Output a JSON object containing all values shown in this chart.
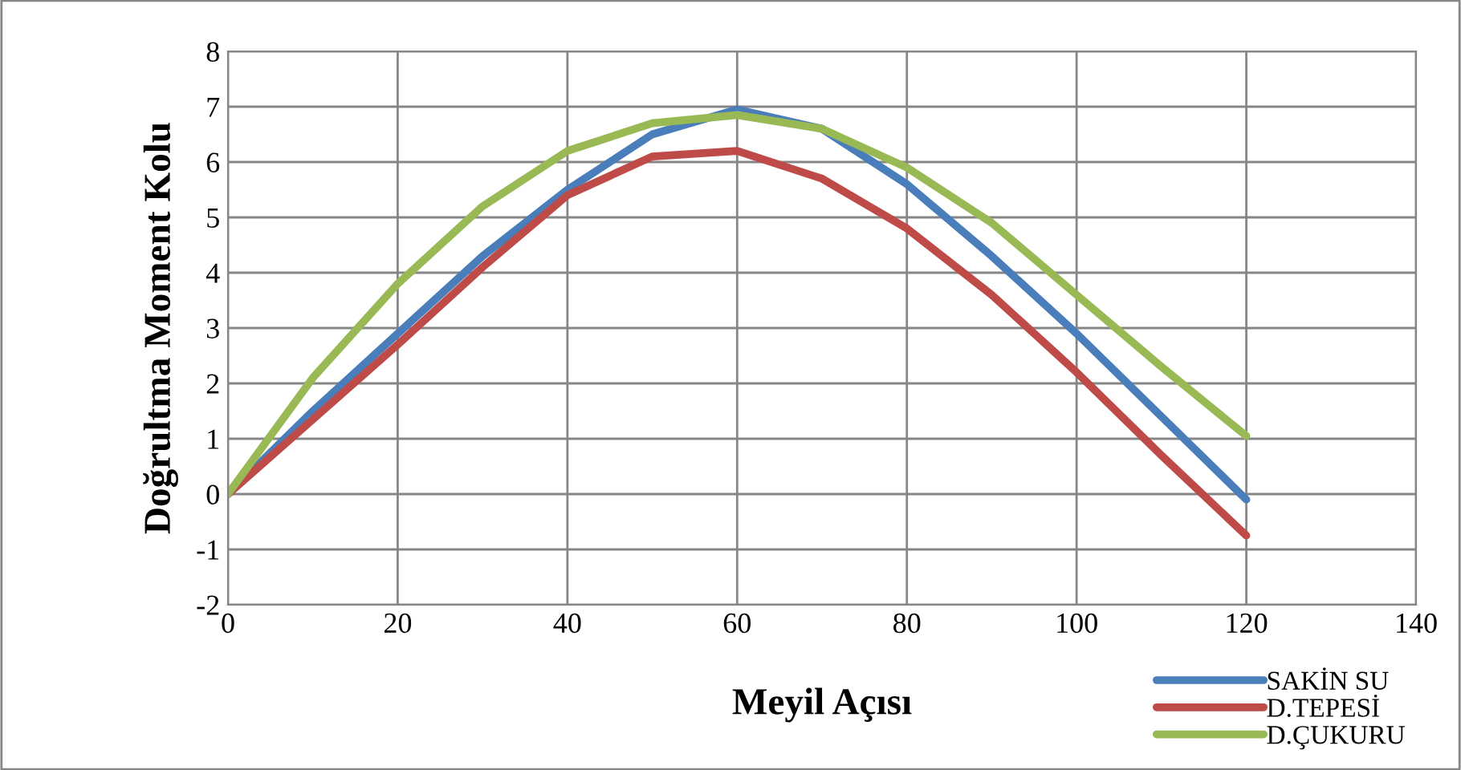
{
  "chart_data": {
    "type": "line",
    "xlabel": "Meyil Açısı",
    "ylabel": "Doğrultma Moment Kolu",
    "x": [
      0,
      10,
      20,
      30,
      40,
      50,
      60,
      70,
      80,
      90,
      100,
      110,
      120
    ],
    "xlim": [
      0,
      140
    ],
    "xticks": [
      0,
      20,
      40,
      60,
      80,
      100,
      120,
      140
    ],
    "ylim": [
      -2,
      8
    ],
    "yticks": [
      -2,
      -1,
      0,
      1,
      2,
      3,
      4,
      5,
      6,
      7,
      8
    ],
    "grid": true,
    "legend": "bottom right",
    "marker": "none",
    "line_style": "solid",
    "series": [
      {
        "name": "SAKİN SU",
        "color": "#4a7ebb",
        "values": [
          0,
          1.5,
          2.9,
          4.3,
          5.5,
          6.5,
          6.95,
          6.6,
          5.6,
          4.3,
          2.9,
          1.4,
          -0.1
        ]
      },
      {
        "name": "D.TEPESİ",
        "color": "#be4b48",
        "values": [
          0,
          1.35,
          2.7,
          4.1,
          5.4,
          6.1,
          6.2,
          5.7,
          4.8,
          3.6,
          2.2,
          0.7,
          -0.75
        ]
      },
      {
        "name": "D.ÇUKURU",
        "color": "#98b954",
        "values": [
          0,
          2.1,
          3.8,
          5.2,
          6.2,
          6.7,
          6.85,
          6.6,
          5.9,
          4.9,
          3.6,
          2.3,
          1.05
        ]
      }
    ]
  }
}
